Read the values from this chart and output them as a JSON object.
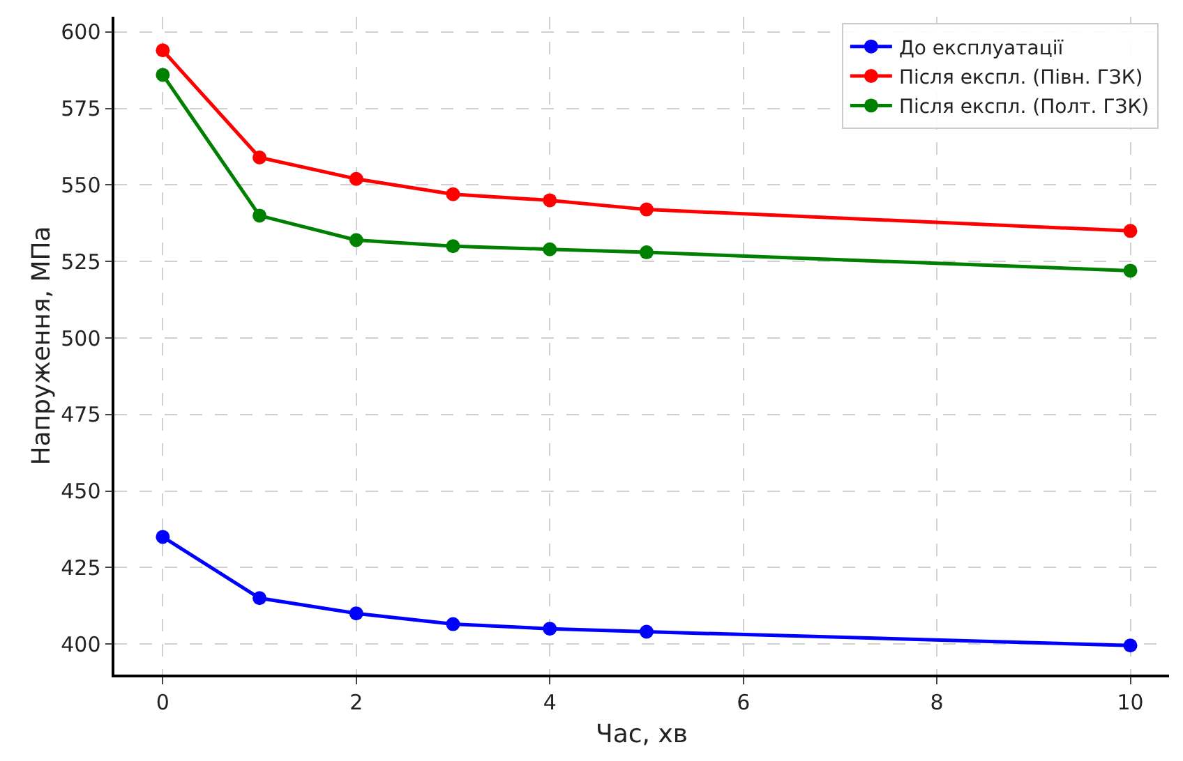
{
  "chart_data": {
    "type": "line",
    "xlabel": "Час, хв",
    "ylabel": "Напруження, МПа",
    "x": [
      0,
      1,
      2,
      3,
      4,
      5,
      10
    ],
    "series": [
      {
        "name": "До експлуатації",
        "color": "#0000ff",
        "values": [
          435,
          415,
          410,
          406.5,
          405,
          404,
          399.5
        ]
      },
      {
        "name": "Після експл. (Півн. ГЗК)",
        "color": "#ff0000",
        "values": [
          594,
          559,
          552,
          547,
          545,
          542,
          535
        ]
      },
      {
        "name": "Після експл. (Полт. ГЗК)",
        "color": "#008000",
        "values": [
          586,
          540,
          532,
          530,
          529,
          528,
          522
        ]
      }
    ],
    "xlim": [
      -0.5,
      10.4
    ],
    "xticks": [
      0,
      2,
      4,
      6,
      8,
      10
    ],
    "ylim": [
      390,
      605
    ],
    "yticks": [
      400,
      425,
      450,
      475,
      500,
      525,
      550,
      575,
      600
    ],
    "grid": true,
    "legend": "top right",
    "marker": "circle",
    "line_style": "solid"
  }
}
